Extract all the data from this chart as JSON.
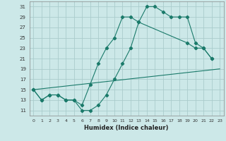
{
  "xlabel": "Humidex (Indice chaleur)",
  "background_color": "#cce8e8",
  "grid_color": "#aacccc",
  "line_color": "#1a7a6a",
  "xlim": [
    -0.5,
    23.5
  ],
  "ylim": [
    10.0,
    32.0
  ],
  "yticks": [
    11,
    13,
    15,
    17,
    19,
    21,
    23,
    25,
    27,
    29,
    31
  ],
  "xticks": [
    0,
    1,
    2,
    3,
    4,
    5,
    6,
    7,
    8,
    9,
    10,
    11,
    12,
    13,
    14,
    15,
    16,
    17,
    18,
    19,
    20,
    21,
    22,
    23
  ],
  "line1_x": [
    0,
    23
  ],
  "line1_y": [
    15,
    19
  ],
  "line2_x": [
    0,
    1,
    2,
    3,
    4,
    5,
    6,
    7,
    8,
    9,
    10,
    11,
    12,
    13,
    19,
    20,
    21,
    22
  ],
  "line2_y": [
    15,
    13,
    14,
    14,
    13,
    13,
    12,
    16,
    20,
    23,
    25,
    29,
    29,
    28,
    24,
    23,
    23,
    21
  ],
  "line3_x": [
    0,
    1,
    2,
    3,
    4,
    5,
    6,
    7,
    8,
    9,
    10,
    11,
    12,
    13,
    14,
    15,
    16,
    17,
    18,
    19,
    20,
    21,
    22
  ],
  "line3_y": [
    15,
    13,
    14,
    14,
    13,
    13,
    11,
    11,
    12,
    14,
    17,
    20,
    23,
    28,
    31,
    31,
    30,
    29,
    29,
    29,
    24,
    23,
    21
  ]
}
